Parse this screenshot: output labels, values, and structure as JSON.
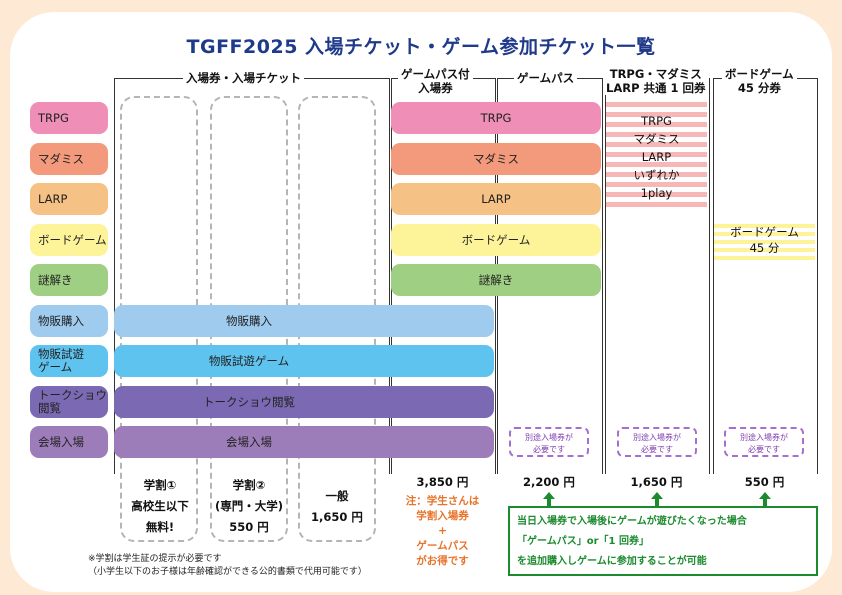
{
  "title": "TGFF2025 入場チケット・ゲーム参加チケット一覧",
  "columns": {
    "entry": "入場券・入場チケット",
    "gamepass_ticket": "ゲームパス付\n入場券",
    "gamepass": "ゲームパス",
    "single": "TRPG・マダミス\nLARP 共通 1 回券",
    "boardgame": "ボードゲーム\n45 分券"
  },
  "rows": [
    "TRPG",
    "マダミス",
    "LARP",
    "ボードゲーム",
    "謎解き",
    "物販購入",
    "物販試遊\nゲーム",
    "トークショウ\n閲覧",
    "会場入場"
  ],
  "bars": {
    "trpg": "TRPG",
    "madamis": "マダミス",
    "larp": "LARP",
    "boardgame": "ボードゲーム",
    "nazotoki": "謎解き",
    "buppan": "物販購入",
    "shiyu": "物販試遊ゲーム",
    "talk": "トークショウ閲覧",
    "entry": "会場入場"
  },
  "single_text": "TRPG\nマダミス\nLARP\nいずれか\n1play",
  "board_text": "ボードゲーム\n45 分",
  "separate_ticket": "別途入場券が\n必要です",
  "prices": {
    "student1": "学割①\n高校生以下\n無料!",
    "student2": "学割②\n(専門・大学)\n550 円",
    "general": "一般\n1,650 円",
    "gamepass_ticket": "3,850 円",
    "gamepass": "2,200 円",
    "single": "1,650 円",
    "boardgame": "550 円"
  },
  "student_note": "注：学生さんは\n学割入場券\n+\nゲームパス\nがお得です",
  "green_note": "当日入場券で入場後にゲームが遊びたくなった場合\n「ゲームパス」or「1 回券」\nを追加購入しゲームに参加することが可能",
  "footnote_1": "※学割は学生証の提示が必要です",
  "footnote_2": "（小学生以下のお子様は年齢確認ができる公的書類で代用可能です）",
  "colors": {
    "title": "#1f3a8a",
    "trpg": "#ef8fb7",
    "madamis": "#f39a7d",
    "larp": "#f6c184",
    "boardgame": "#fdf49a",
    "nazotoki": "#9fcf83",
    "buppan": "#9fcbee",
    "shiyu": "#5fc3ef",
    "talk": "#7b6ab3",
    "entry": "#9d7db9",
    "green": "#1c8b2f",
    "orange": "#e8732a"
  }
}
